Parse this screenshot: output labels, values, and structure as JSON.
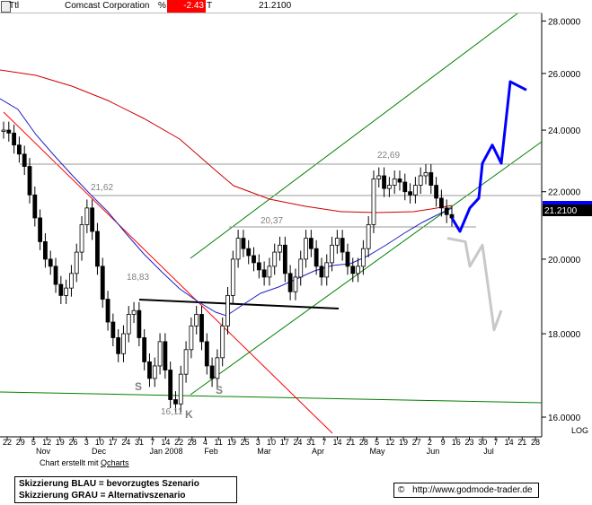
{
  "header": {
    "ticker_box": "Ttl",
    "company": "Comcast Corporation",
    "pct_symbol": "%",
    "change": "-2.43",
    "t_symbol": "T",
    "last": "21.2100"
  },
  "chart_data": {
    "type": "candlestick",
    "y_axis": {
      "range": [
        15.6,
        28.3
      ],
      "ticks": [
        16.0,
        18.0,
        20.0,
        22.0,
        24.0,
        26.0,
        28.0
      ],
      "tick_labels": [
        "16.0000",
        "18.0000",
        "20.0000",
        "22.0000",
        "24.0000",
        "26.0000",
        "28.0000"
      ],
      "scale": "LOG",
      "current_price_label": "21.2100"
    },
    "x_axis": {
      "day_labels": [
        "22",
        "29",
        "5",
        "12",
        "19",
        "26",
        "3",
        "10",
        "17",
        "24",
        "31",
        "7",
        "14",
        "22",
        "28",
        "4",
        "11",
        "19",
        "25",
        "3",
        "10",
        "17",
        "24",
        "31",
        "7",
        "14",
        "21",
        "28",
        "5",
        "12",
        "19",
        "27",
        "2",
        "9",
        "16",
        "23",
        "30",
        "7",
        "14",
        "21",
        "28"
      ],
      "month_labels": [
        "Nov",
        "Dec",
        "Jan 2008",
        "Feb",
        "Mar",
        "Apr",
        "May",
        "Jun",
        "Jul"
      ]
    },
    "annotations": {
      "prices": [
        "21,62",
        "18,83",
        "20,37",
        "22,69",
        "16,11"
      ],
      "pattern_letters": [
        "S",
        "K",
        "S"
      ]
    },
    "series": [
      {
        "name": "price",
        "color": "#000000",
        "values": [
          24.0,
          23.9,
          23.5,
          23.2,
          22.8,
          21.9,
          21.2,
          20.5,
          20.0,
          19.8,
          19.3,
          19.0,
          19.2,
          19.6,
          20.2,
          21.0,
          21.5,
          20.8,
          19.8,
          18.9,
          18.3,
          17.9,
          17.5,
          18.0,
          18.5,
          18.6,
          17.9,
          17.3,
          16.9,
          17.2,
          17.8,
          17.1,
          16.4,
          16.3,
          17.0,
          17.6,
          18.2,
          18.5,
          17.8,
          17.2,
          16.9,
          17.4,
          18.2,
          19.0,
          20.0,
          20.6,
          20.3,
          20.1,
          19.9,
          19.7,
          19.5,
          19.8,
          20.2,
          20.4,
          19.6,
          19.1,
          19.5,
          20.0,
          20.6,
          20.3,
          19.8,
          19.5,
          19.9,
          20.4,
          20.6,
          20.2,
          19.8,
          19.6,
          19.8,
          20.3,
          21.0,
          22.4,
          22.5,
          22.1,
          22.2,
          22.4,
          22.3,
          22.0,
          21.9,
          22.2,
          22.5,
          22.6,
          22.2,
          21.8,
          21.5,
          21.3,
          21.2
        ]
      }
    ],
    "scenarios": [
      {
        "name": "BLAU",
        "color": "#0000ff",
        "values": [
          21.2,
          20.8,
          21.5,
          21.8,
          22.9,
          23.5,
          22.9,
          25.7,
          25.4
        ]
      },
      {
        "name": "GRAU",
        "color": "#c8c8c8",
        "values": [
          20.6,
          20.5,
          19.8,
          20.4,
          18.1,
          18.6
        ]
      }
    ]
  },
  "credit": {
    "prefix": "Chart erstellt mit ",
    "brand": "Qcharts"
  },
  "legend": {
    "line1": "Skizzierung BLAU = bevorzugtes Szenario",
    "line2": "Skizzierung GRAU = Alternativszenario"
  },
  "source": {
    "symbol": "©",
    "url": "http://www.godmode-trader.de"
  }
}
